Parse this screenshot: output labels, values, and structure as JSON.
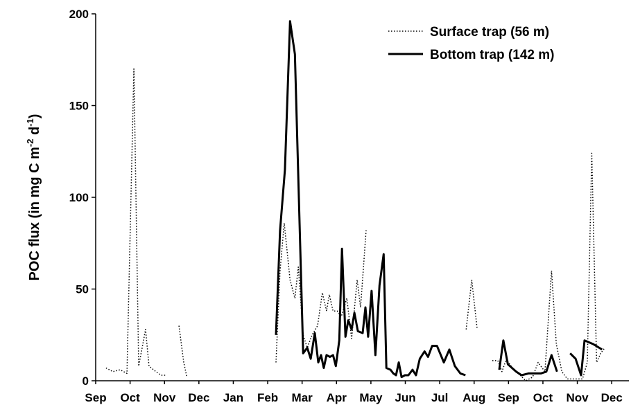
{
  "chart_data": {
    "type": "line",
    "ylabel": [
      "POC flux (in mg C m",
      "-2",
      " d",
      "-1",
      ")"
    ],
    "xlim": [
      0,
      15.5
    ],
    "xticks": [
      {
        "value": 0,
        "label": "Sep"
      },
      {
        "value": 1,
        "label": "Oct"
      },
      {
        "value": 2,
        "label": "Nov"
      },
      {
        "value": 3,
        "label": "Dec"
      },
      {
        "value": 4,
        "label": "Jan"
      },
      {
        "value": 5,
        "label": "Feb"
      },
      {
        "value": 6,
        "label": "Mar"
      },
      {
        "value": 7,
        "label": "Apr"
      },
      {
        "value": 8,
        "label": "May"
      },
      {
        "value": 9,
        "label": "Jun"
      },
      {
        "value": 10,
        "label": "Jul"
      },
      {
        "value": 11,
        "label": "Aug"
      },
      {
        "value": 12,
        "label": "Sep"
      },
      {
        "value": 13,
        "label": "Oct"
      },
      {
        "value": 14,
        "label": "Nov"
      },
      {
        "value": 15,
        "label": "Dec"
      }
    ],
    "ylim": [
      0,
      200
    ],
    "yticks": [
      0,
      50,
      100,
      150,
      200
    ],
    "series": [
      {
        "name": "Surface trap (56 m)",
        "color": "#000000",
        "dash": "dotted",
        "x": [
          0.3,
          0.5,
          0.71,
          0.91,
          1.11,
          1.25,
          1.37,
          1.45,
          1.55,
          1.75,
          1.9,
          2.02,
          null,
          2.42,
          2.56,
          2.65,
          null,
          5.24,
          5.36,
          5.48,
          5.65,
          5.79,
          5.89,
          6.03,
          6.15,
          6.29,
          6.45,
          6.59,
          6.71,
          6.79,
          6.9,
          7.02,
          7.14,
          7.3,
          7.44,
          7.6,
          7.7,
          7.86,
          null,
          10.77,
          10.93,
          11.09,
          null,
          11.53,
          11.69,
          11.81,
          11.94,
          12.14,
          12.34,
          12.5,
          12.7,
          12.86,
          13.06,
          13.25,
          13.39,
          13.55,
          13.71,
          13.95,
          14.15,
          14.29,
          14.42,
          14.56,
          14.68,
          14.8
        ],
        "values": [
          7,
          5,
          6,
          4,
          170,
          8,
          20,
          28,
          8,
          5,
          3,
          3,
          null,
          30,
          10,
          2,
          null,
          10,
          60,
          86,
          55,
          45,
          62,
          25,
          18,
          25,
          30,
          48,
          38,
          47,
          38,
          38,
          35,
          45,
          23,
          55,
          40,
          82,
          null,
          28,
          55,
          28,
          null,
          11,
          11,
          5,
          12,
          6,
          3,
          0,
          2,
          10,
          5,
          60,
          20,
          5,
          1,
          1,
          1,
          10,
          124,
          10,
          15,
          18
        ]
      },
      {
        "name": "Bottom trap (142 m)",
        "color": "#000000",
        "dash": "solid",
        "x": [
          5.24,
          5.36,
          5.5,
          5.65,
          5.79,
          6.03,
          6.15,
          6.25,
          6.37,
          6.47,
          6.55,
          6.63,
          6.71,
          6.81,
          6.9,
          6.98,
          7.08,
          7.16,
          7.26,
          7.34,
          7.44,
          7.52,
          7.62,
          7.76,
          7.84,
          7.92,
          8.02,
          8.13,
          8.25,
          8.37,
          8.45,
          8.57,
          8.65,
          8.73,
          8.81,
          8.89,
          8.99,
          9.09,
          9.21,
          9.31,
          9.42,
          9.56,
          9.66,
          9.78,
          9.92,
          10.12,
          10.28,
          10.44,
          10.6,
          10.75,
          null,
          11.73,
          11.85,
          11.98,
          12.22,
          12.38,
          12.58,
          12.78,
          12.94,
          13.1,
          13.25,
          13.41,
          null,
          13.79,
          13.95,
          14.11,
          14.21,
          14.46,
          14.72
        ],
        "values": [
          25,
          82,
          115,
          196,
          178,
          15,
          18,
          12,
          26,
          10,
          14,
          7,
          14,
          13,
          14,
          8,
          22,
          72,
          24,
          33,
          28,
          37,
          27,
          26,
          40,
          24,
          49,
          14,
          52,
          69,
          7,
          6,
          4,
          3,
          10,
          2,
          3,
          3,
          6,
          3,
          12,
          16,
          13,
          19,
          19,
          10,
          17,
          8,
          4,
          3,
          null,
          6,
          22,
          9,
          5,
          3,
          4,
          4,
          4,
          5,
          14,
          5,
          null,
          15,
          12,
          3,
          22,
          20,
          17
        ]
      }
    ],
    "legend": "upper right"
  }
}
